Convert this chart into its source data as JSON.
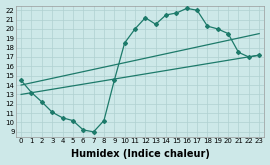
{
  "xlabel": "Humidex (Indice chaleur)",
  "xlim": [
    -0.5,
    23.5
  ],
  "ylim": [
    8.5,
    22.5
  ],
  "color": "#1d7a6a",
  "bg_color": "#cde8e8",
  "grid_color": "#b0d0d0",
  "line1_x": [
    0,
    1,
    2,
    3,
    4,
    5,
    6,
    7,
    8,
    9,
    10,
    11,
    12,
    13,
    14,
    15,
    16,
    17,
    18,
    19,
    20,
    21,
    22,
    23
  ],
  "line1_y": [
    14.5,
    13.2,
    12.2,
    11.1,
    10.5,
    10.2,
    9.2,
    9.0,
    10.2,
    14.5,
    18.5,
    20.0,
    21.2,
    20.5,
    21.5,
    21.7,
    22.2,
    22.0,
    20.3,
    20.0,
    19.5,
    17.5,
    17.0,
    17.2
  ],
  "line2_x": [
    0,
    23
  ],
  "line2_y": [
    14.0,
    19.5
  ],
  "line3_x": [
    0,
    23
  ],
  "line3_y": [
    13.0,
    17.2
  ],
  "font_size": 6.5,
  "label_font_size": 7
}
